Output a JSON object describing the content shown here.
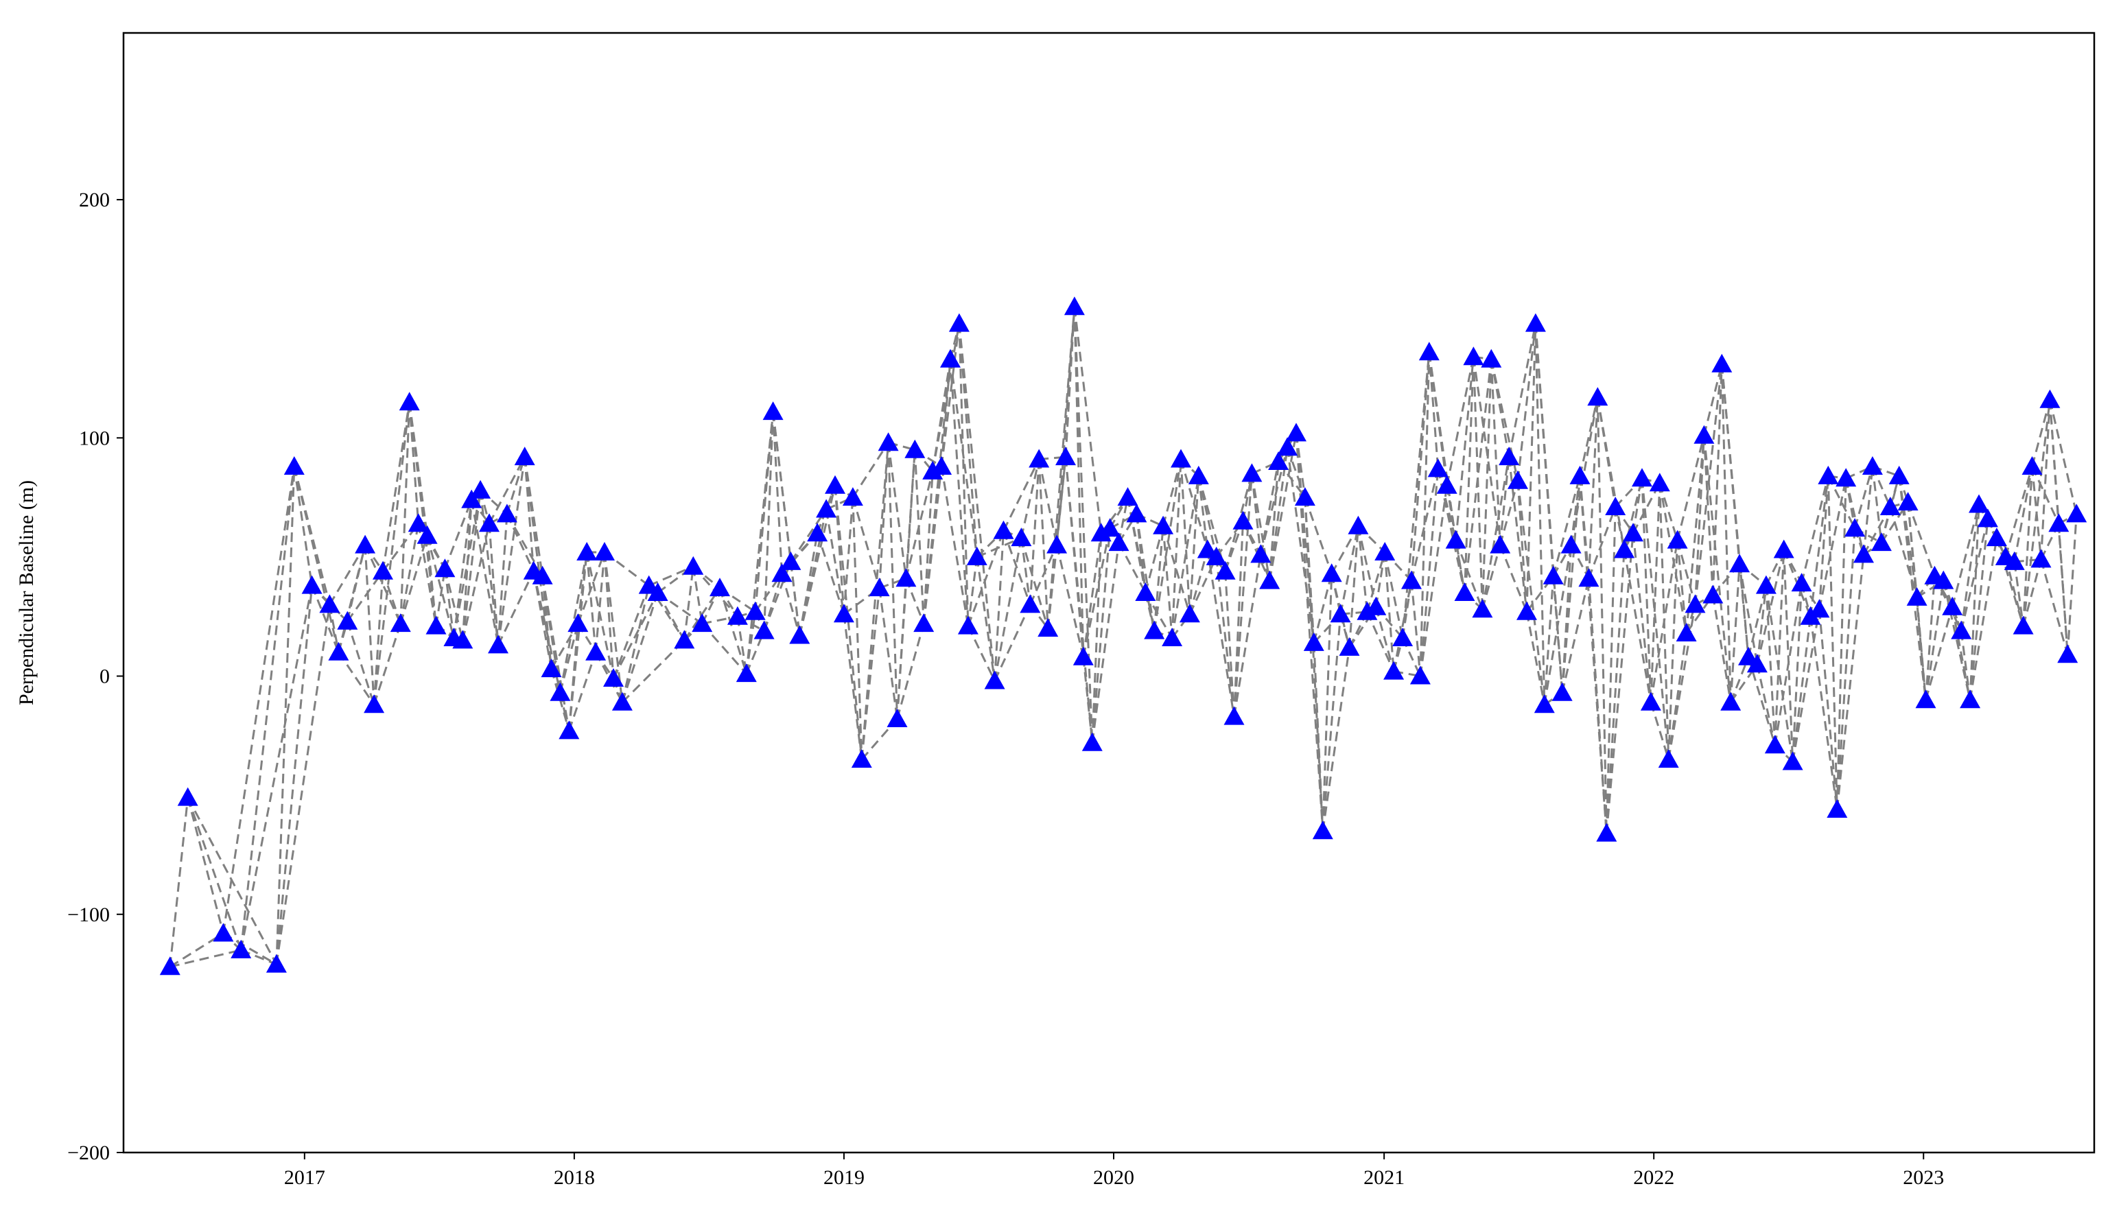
{
  "chart_data": {
    "type": "scatter",
    "title": "",
    "xlabel": "",
    "ylabel": "Perpendicular Baseline (m)",
    "x_ticks": [
      "2017",
      "2018",
      "2019",
      "2020",
      "2021",
      "2022",
      "2023"
    ],
    "y_ticks": [
      -200,
      -100,
      0,
      100,
      200
    ],
    "xlim": [
      "2016-05-01",
      "2023-08-20"
    ],
    "ylim": [
      -200,
      270
    ],
    "marker": "triangle",
    "marker_color": "#0000ff",
    "line_color": "#808080",
    "line_style": "dashed",
    "grid": false,
    "series": [
      {
        "points": [
          [
            "2016-07-03",
            -122
          ],
          [
            "2016-07-27",
            -51
          ],
          [
            "2016-09-13",
            -108
          ],
          [
            "2016-10-07",
            -115
          ],
          [
            "2016-11-24",
            -121
          ],
          [
            "2016-12-18",
            88
          ],
          [
            "2017-01-11",
            38
          ],
          [
            "2017-02-04",
            30
          ],
          [
            "2017-02-16",
            10
          ],
          [
            "2017-02-28",
            23
          ],
          [
            "2017-03-24",
            55
          ],
          [
            "2017-04-05",
            -12
          ],
          [
            "2017-04-17",
            44
          ],
          [
            "2017-05-11",
            22
          ],
          [
            "2017-05-23",
            115
          ],
          [
            "2017-06-04",
            64
          ],
          [
            "2017-06-16",
            59
          ],
          [
            "2017-06-28",
            21
          ],
          [
            "2017-07-10",
            45
          ],
          [
            "2017-07-22",
            16
          ],
          [
            "2017-08-03",
            15
          ],
          [
            "2017-08-15",
            74
          ],
          [
            "2017-08-27",
            78
          ],
          [
            "2017-09-08",
            64
          ],
          [
            "2017-09-20",
            13
          ],
          [
            "2017-10-02",
            68
          ],
          [
            "2017-10-26",
            92
          ],
          [
            "2017-11-07",
            44
          ],
          [
            "2017-11-19",
            42
          ],
          [
            "2017-12-01",
            3
          ],
          [
            "2017-12-13",
            -7
          ],
          [
            "2017-12-25",
            -23
          ],
          [
            "2018-01-06",
            22
          ],
          [
            "2018-01-18",
            52
          ],
          [
            "2018-01-30",
            10
          ],
          [
            "2018-02-11",
            52
          ],
          [
            "2018-02-23",
            -1
          ],
          [
            "2018-03-07",
            -11
          ],
          [
            "2018-04-12",
            38
          ],
          [
            "2018-04-24",
            35
          ],
          [
            "2018-05-30",
            15
          ],
          [
            "2018-06-11",
            46
          ],
          [
            "2018-06-23",
            22
          ],
          [
            "2018-07-17",
            37
          ],
          [
            "2018-08-10",
            25
          ],
          [
            "2018-08-22",
            1
          ],
          [
            "2018-09-03",
            27
          ],
          [
            "2018-09-15",
            19
          ],
          [
            "2018-09-27",
            111
          ],
          [
            "2018-10-09",
            43
          ],
          [
            "2018-10-21",
            48
          ],
          [
            "2018-11-02",
            17
          ],
          [
            "2018-11-26",
            60
          ],
          [
            "2018-12-08",
            70
          ],
          [
            "2018-12-20",
            80
          ],
          [
            "2019-01-01",
            26
          ],
          [
            "2019-01-13",
            75
          ],
          [
            "2019-01-25",
            -35
          ],
          [
            "2019-02-18",
            37
          ],
          [
            "2019-03-02",
            98
          ],
          [
            "2019-03-14",
            -18
          ],
          [
            "2019-03-26",
            41
          ],
          [
            "2019-04-07",
            95
          ],
          [
            "2019-04-19",
            22
          ],
          [
            "2019-05-01",
            86
          ],
          [
            "2019-05-13",
            88
          ],
          [
            "2019-05-25",
            133
          ],
          [
            "2019-06-06",
            148
          ],
          [
            "2019-06-18",
            21
          ],
          [
            "2019-06-30",
            50
          ],
          [
            "2019-07-24",
            -2
          ],
          [
            "2019-08-05",
            61
          ],
          [
            "2019-08-29",
            58
          ],
          [
            "2019-09-10",
            30
          ],
          [
            "2019-09-22",
            91
          ],
          [
            "2019-10-04",
            20
          ],
          [
            "2019-10-16",
            55
          ],
          [
            "2019-10-28",
            92
          ],
          [
            "2019-11-09",
            155
          ],
          [
            "2019-11-21",
            8
          ],
          [
            "2019-12-03",
            -28
          ],
          [
            "2019-12-15",
            60
          ],
          [
            "2019-12-27",
            62
          ],
          [
            "2020-01-08",
            56
          ],
          [
            "2020-01-20",
            75
          ],
          [
            "2020-02-01",
            68
          ],
          [
            "2020-02-13",
            35
          ],
          [
            "2020-02-25",
            19
          ],
          [
            "2020-03-08",
            63
          ],
          [
            "2020-03-20",
            16
          ],
          [
            "2020-04-01",
            91
          ],
          [
            "2020-04-13",
            26
          ],
          [
            "2020-04-25",
            84
          ],
          [
            "2020-05-07",
            53
          ],
          [
            "2020-05-19",
            50
          ],
          [
            "2020-05-31",
            44
          ],
          [
            "2020-06-12",
            -17
          ],
          [
            "2020-06-24",
            65
          ],
          [
            "2020-07-06",
            85
          ],
          [
            "2020-07-18",
            51
          ],
          [
            "2020-07-30",
            40
          ],
          [
            "2020-08-11",
            90
          ],
          [
            "2020-08-23",
            96
          ],
          [
            "2020-09-04",
            102
          ],
          [
            "2020-09-16",
            75
          ],
          [
            "2020-09-28",
            14
          ],
          [
            "2020-10-10",
            -65
          ],
          [
            "2020-10-22",
            43
          ],
          [
            "2020-11-03",
            26
          ],
          [
            "2020-11-15",
            12
          ],
          [
            "2020-11-27",
            63
          ],
          [
            "2020-12-09",
            27
          ],
          [
            "2020-12-21",
            29
          ],
          [
            "2021-01-02",
            52
          ],
          [
            "2021-01-14",
            2
          ],
          [
            "2021-01-26",
            16
          ],
          [
            "2021-02-07",
            40
          ],
          [
            "2021-02-19",
            0
          ],
          [
            "2021-03-03",
            136
          ],
          [
            "2021-03-15",
            87
          ],
          [
            "2021-03-27",
            80
          ],
          [
            "2021-04-08",
            57
          ],
          [
            "2021-04-20",
            35
          ],
          [
            "2021-05-02",
            134
          ],
          [
            "2021-05-14",
            28
          ],
          [
            "2021-05-26",
            133
          ],
          [
            "2021-06-07",
            55
          ],
          [
            "2021-06-19",
            92
          ],
          [
            "2021-07-01",
            82
          ],
          [
            "2021-07-13",
            27
          ],
          [
            "2021-07-25",
            148
          ],
          [
            "2021-08-06",
            -12
          ],
          [
            "2021-08-18",
            42
          ],
          [
            "2021-08-30",
            -7
          ],
          [
            "2021-09-11",
            55
          ],
          [
            "2021-09-23",
            84
          ],
          [
            "2021-10-05",
            41
          ],
          [
            "2021-10-17",
            117
          ],
          [
            "2021-10-29",
            -66
          ],
          [
            "2021-11-10",
            71
          ],
          [
            "2021-11-22",
            53
          ],
          [
            "2021-12-04",
            60
          ],
          [
            "2021-12-16",
            83
          ],
          [
            "2021-12-28",
            -11
          ],
          [
            "2022-01-09",
            81
          ],
          [
            "2022-01-21",
            -35
          ],
          [
            "2022-02-02",
            57
          ],
          [
            "2022-02-14",
            18
          ],
          [
            "2022-02-26",
            30
          ],
          [
            "2022-03-10",
            101
          ],
          [
            "2022-03-22",
            34
          ],
          [
            "2022-04-03",
            131
          ],
          [
            "2022-04-15",
            -11
          ],
          [
            "2022-04-27",
            47
          ],
          [
            "2022-05-09",
            8
          ],
          [
            "2022-05-21",
            5
          ],
          [
            "2022-06-02",
            38
          ],
          [
            "2022-06-14",
            -29
          ],
          [
            "2022-06-26",
            53
          ],
          [
            "2022-07-08",
            -36
          ],
          [
            "2022-07-20",
            39
          ],
          [
            "2022-08-01",
            25
          ],
          [
            "2022-08-13",
            28
          ],
          [
            "2022-08-25",
            84
          ],
          [
            "2022-09-06",
            -56
          ],
          [
            "2022-09-18",
            83
          ],
          [
            "2022-09-30",
            62
          ],
          [
            "2022-10-12",
            51
          ],
          [
            "2022-10-24",
            88
          ],
          [
            "2022-11-05",
            56
          ],
          [
            "2022-11-17",
            71
          ],
          [
            "2022-11-29",
            84
          ],
          [
            "2022-12-11",
            73
          ],
          [
            "2022-12-23",
            33
          ],
          [
            "2023-01-04",
            -10
          ],
          [
            "2023-01-16",
            42
          ],
          [
            "2023-01-28",
            40
          ],
          [
            "2023-02-09",
            29
          ],
          [
            "2023-02-21",
            19
          ],
          [
            "2023-03-05",
            -10
          ],
          [
            "2023-03-17",
            72
          ],
          [
            "2023-03-29",
            66
          ],
          [
            "2023-04-10",
            58
          ],
          [
            "2023-04-22",
            50
          ],
          [
            "2023-05-04",
            48
          ],
          [
            "2023-05-16",
            21
          ],
          [
            "2023-05-28",
            88
          ],
          [
            "2023-06-09",
            49
          ],
          [
            "2023-06-21",
            116
          ],
          [
            "2023-07-03",
            64
          ],
          [
            "2023-07-15",
            9
          ],
          [
            "2023-07-27",
            68
          ]
        ]
      }
    ]
  }
}
